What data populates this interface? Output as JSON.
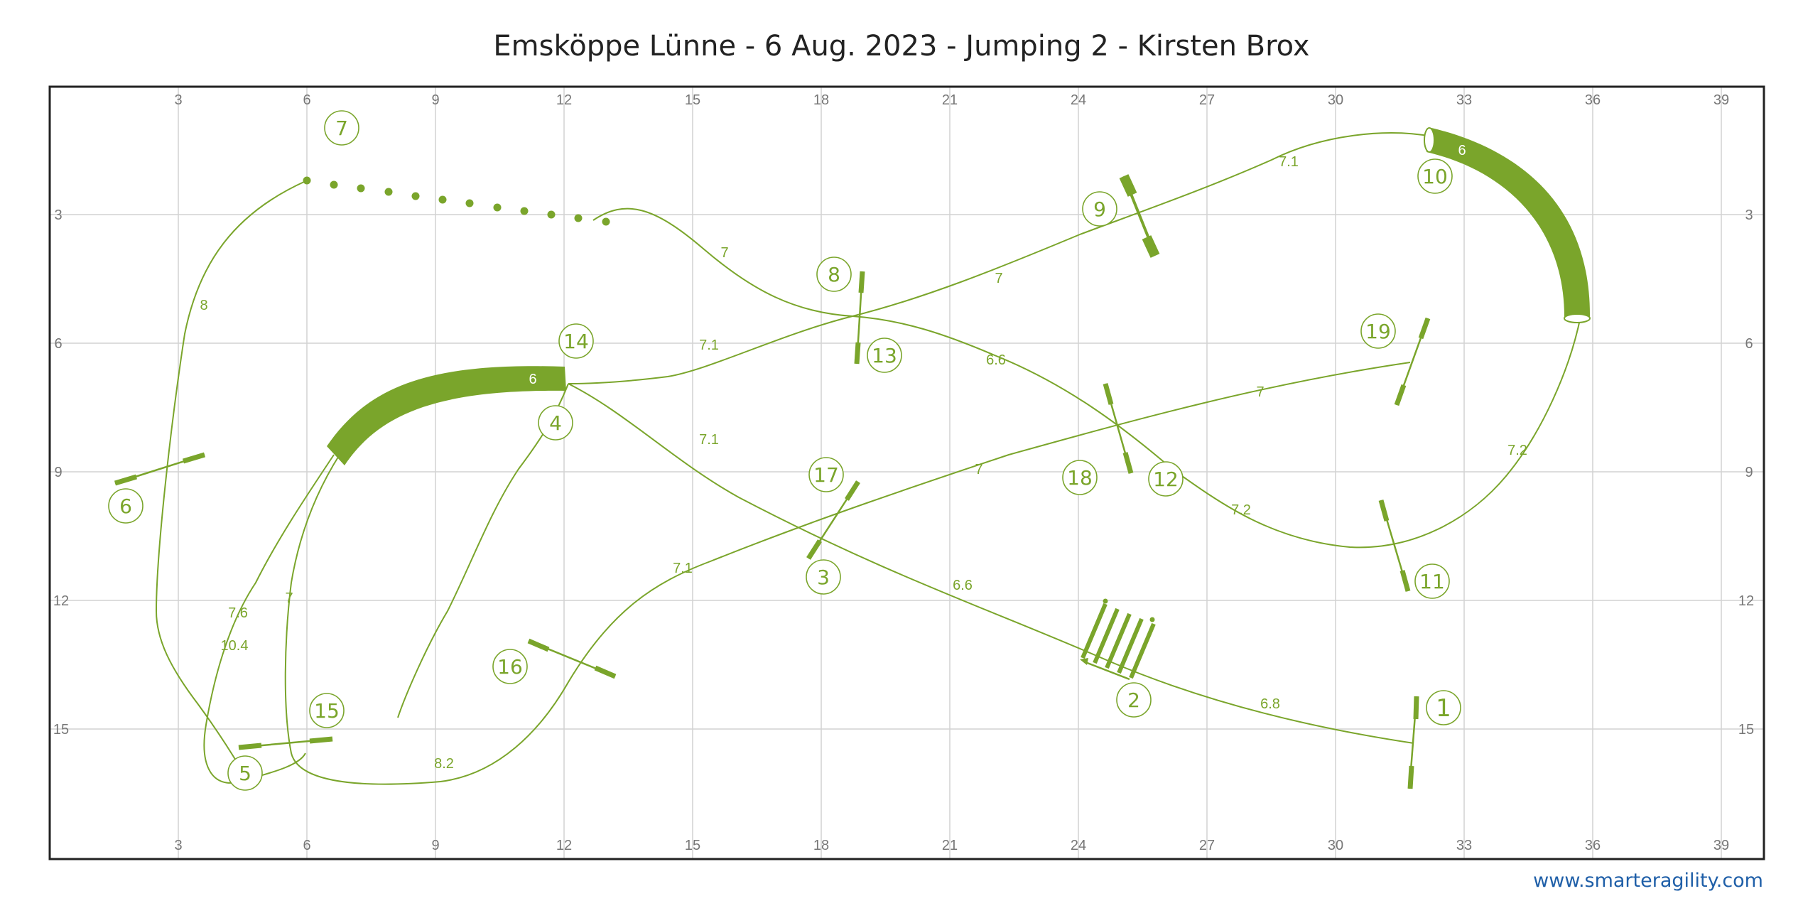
{
  "title": "Emsköppe Lünne - 6 Aug. 2023 - Jumping 2 - Kirsten Brox",
  "website": "www.smarteragility.com",
  "axis": {
    "x_ticks": [
      "3",
      "6",
      "9",
      "12",
      "15",
      "18",
      "21",
      "24",
      "27",
      "30",
      "33",
      "36",
      "39"
    ],
    "y_ticks": [
      "3",
      "6",
      "9",
      "12",
      "15"
    ]
  },
  "obstacle_numbers": [
    {
      "label": "1"
    },
    {
      "label": "2"
    },
    {
      "label": "3"
    },
    {
      "label": "4"
    },
    {
      "label": "5"
    },
    {
      "label": "6"
    },
    {
      "label": "7"
    },
    {
      "label": "8"
    },
    {
      "label": "9"
    },
    {
      "label": "10"
    },
    {
      "label": "11"
    },
    {
      "label": "12"
    },
    {
      "label": "13"
    },
    {
      "label": "14"
    },
    {
      "label": "15"
    },
    {
      "label": "16"
    },
    {
      "label": "17"
    },
    {
      "label": "18"
    },
    {
      "label": "19"
    }
  ],
  "tunnel_labels": [
    "6",
    "6"
  ],
  "distances": [
    "6.8",
    "6.6",
    "7.1",
    "7.6",
    "10.4",
    "8",
    "7",
    "6.6",
    "7",
    "7.1",
    "7.2",
    "7.2",
    "7",
    "7.1",
    "8.2",
    "7",
    "7",
    "7.1"
  ],
  "colors": {
    "course": "#7aa52b",
    "link": "#1f5fa8",
    "frame": "#222222",
    "grid": "#d2d2d2"
  }
}
